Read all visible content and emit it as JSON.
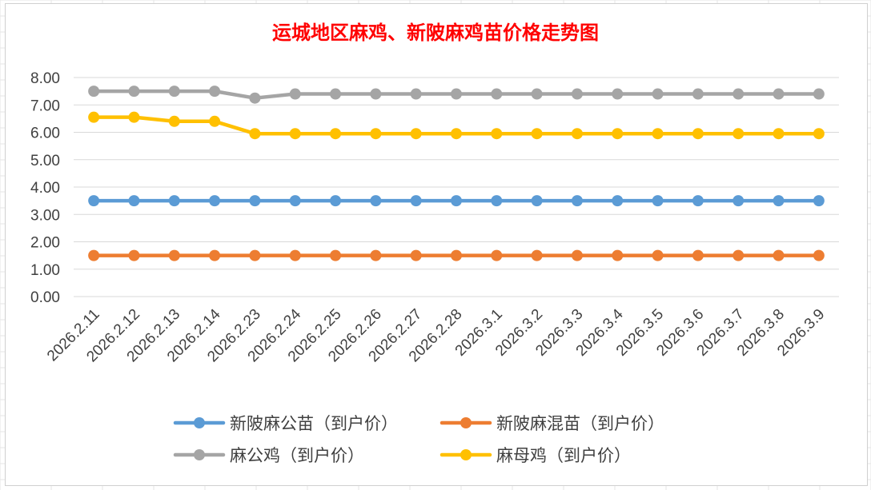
{
  "chart_data": {
    "type": "line",
    "title": "运城地区麻鸡、新陂麻鸡苗价格走势图",
    "title_color": "#FF0000",
    "categories": [
      "2026.2.11",
      "2026.2.12",
      "2026.2.13",
      "2026.2.14",
      "2026.2.23",
      "2026.2.24",
      "2026.2.25",
      "2026.2.26",
      "2026.2.27",
      "2026.2.28",
      "2026.3.1",
      "2026.3.2",
      "2026.3.3",
      "2026.3.4",
      "2026.3.5",
      "2026.3.6",
      "2026.3.7",
      "2026.3.8",
      "2026.3.9"
    ],
    "ylim": [
      0,
      8
    ],
    "yticks": [
      "0.00",
      "1.00",
      "2.00",
      "3.00",
      "4.00",
      "5.00",
      "6.00",
      "7.00",
      "8.00"
    ],
    "grid": true,
    "legend_position": "bottom",
    "series": [
      {
        "name": "新陂麻公苗（到户价）",
        "color": "#5B9BD5",
        "values": [
          3.5,
          3.5,
          3.5,
          3.5,
          3.5,
          3.5,
          3.5,
          3.5,
          3.5,
          3.5,
          3.5,
          3.5,
          3.5,
          3.5,
          3.5,
          3.5,
          3.5,
          3.5,
          3.5
        ]
      },
      {
        "name": "新陂麻混苗（到户价）",
        "color": "#ED7D31",
        "values": [
          1.5,
          1.5,
          1.5,
          1.5,
          1.5,
          1.5,
          1.5,
          1.5,
          1.5,
          1.5,
          1.5,
          1.5,
          1.5,
          1.5,
          1.5,
          1.5,
          1.5,
          1.5,
          1.5
        ]
      },
      {
        "name": "麻公鸡（到户价）",
        "color": "#A5A5A5",
        "values": [
          7.5,
          7.5,
          7.5,
          7.5,
          7.25,
          7.4,
          7.4,
          7.4,
          7.4,
          7.4,
          7.4,
          7.4,
          7.4,
          7.4,
          7.4,
          7.4,
          7.4,
          7.4,
          7.4
        ]
      },
      {
        "name": "麻母鸡（到户价）",
        "color": "#FFC000",
        "values": [
          6.55,
          6.55,
          6.4,
          6.4,
          5.95,
          5.95,
          5.95,
          5.95,
          5.95,
          5.95,
          5.95,
          5.95,
          5.95,
          5.95,
          5.95,
          5.95,
          5.95,
          5.95,
          5.95
        ]
      }
    ]
  }
}
